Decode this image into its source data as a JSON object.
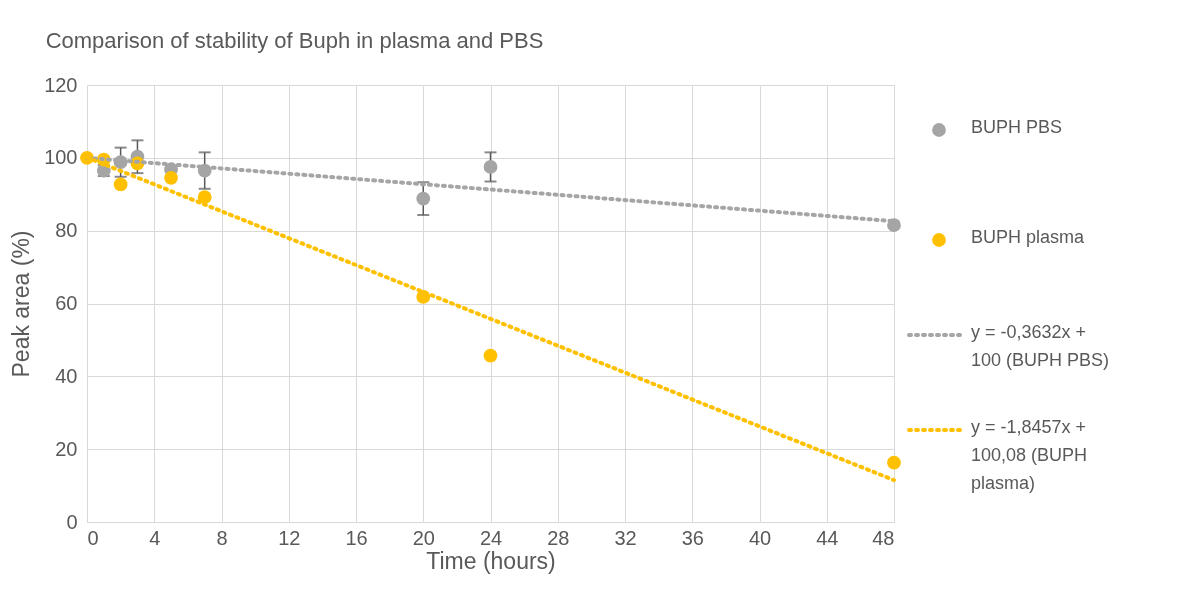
{
  "chart_data": {
    "type": "scatter",
    "title": "Comparison of stability of Buph in plasma and PBS",
    "xlabel": "Time (hours)",
    "ylabel": "Peak area (%)",
    "xlim": [
      0,
      48
    ],
    "xticks": [
      0,
      4,
      8,
      12,
      16,
      20,
      24,
      28,
      32,
      36,
      40,
      44,
      48
    ],
    "ylim": [
      0,
      120
    ],
    "yticks": [
      0,
      20,
      40,
      60,
      80,
      100,
      120
    ],
    "grid": true,
    "legend": "right",
    "marker": "circle",
    "series": [
      {
        "name": "BUPH PBS",
        "color": "#a5a5a5",
        "x": [
          1,
          2,
          3,
          5,
          7,
          20,
          24,
          48
        ],
        "values": [
          96.5,
          98.8,
          100.3,
          96.8,
          96.5,
          88.8,
          97.5,
          81.5
        ],
        "errors": [
          1.5,
          4,
          4.5,
          null,
          5,
          4.5,
          4,
          null
        ]
      },
      {
        "name": "BUPH plasma",
        "color": "#ffc000",
        "x": [
          0,
          1,
          2,
          3,
          5,
          7,
          20,
          24,
          48
        ],
        "values": [
          100,
          99.5,
          92.7,
          98.5,
          94.5,
          89.2,
          61.8,
          45.7,
          16.3
        ]
      },
      {
        "name": "y = -0,3632x + 100 (BUPH PBS)",
        "color": "#a5a5a5",
        "type": "line",
        "line_style": "dotted",
        "marker": "none",
        "x": [
          0,
          48
        ],
        "values": [
          100,
          82.6
        ]
      },
      {
        "name": "y = -1,8457x + 100,08 (BUPH plasma)",
        "color": "#ffc000",
        "type": "line",
        "line_style": "dotted",
        "marker": "none",
        "x": [
          0,
          48
        ],
        "values": [
          100.1,
          11.5
        ]
      }
    ]
  }
}
